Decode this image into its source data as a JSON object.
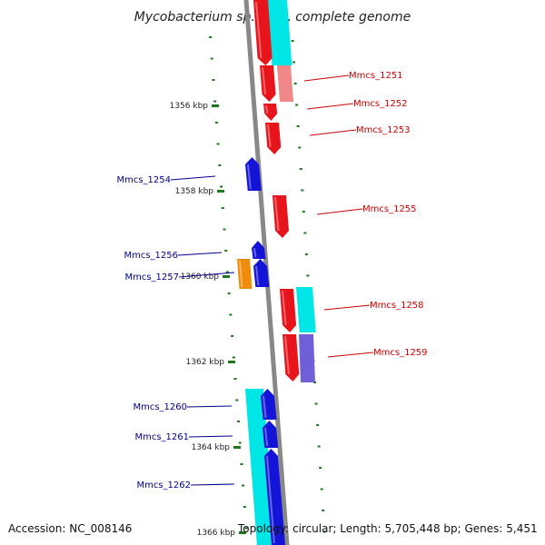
{
  "title": "Mycobacterium sp. MCS, complete genome",
  "footer": {
    "accession": "Accession: NC_008146",
    "summary": "Topology: circular; Length: 5,705,448 bp; Genes: 5,451"
  },
  "colors": {
    "forward": "#e8141c",
    "reverse": "#1414d8",
    "cds_track": "#00e5e5",
    "forward_label": "#cc0000",
    "reverse_label": "#00008b",
    "orange": "#f08c0c",
    "tick": "#1a7a1a",
    "backbone": "#888888"
  },
  "kbp_ticks": [
    "1356 kbp",
    "1358 kbp",
    "1360 kbp",
    "1362 kbp",
    "1364 kbp",
    "1366 kbp"
  ],
  "genes": [
    {
      "name": "Mmcs_1251",
      "strand": "forward"
    },
    {
      "name": "Mmcs_1252",
      "strand": "forward"
    },
    {
      "name": "Mmcs_1253",
      "strand": "forward"
    },
    {
      "name": "Mmcs_1254",
      "strand": "reverse"
    },
    {
      "name": "Mmcs_1255",
      "strand": "forward"
    },
    {
      "name": "Mmcs_1256",
      "strand": "reverse"
    },
    {
      "name": "Mmcs_1257",
      "strand": "reverse"
    },
    {
      "name": "Mmcs_1258",
      "strand": "forward"
    },
    {
      "name": "Mmcs_1259",
      "strand": "forward"
    },
    {
      "name": "Mmcs_1260",
      "strand": "reverse"
    },
    {
      "name": "Mmcs_1261",
      "strand": "reverse"
    },
    {
      "name": "Mmcs_1262",
      "strand": "reverse"
    }
  ]
}
